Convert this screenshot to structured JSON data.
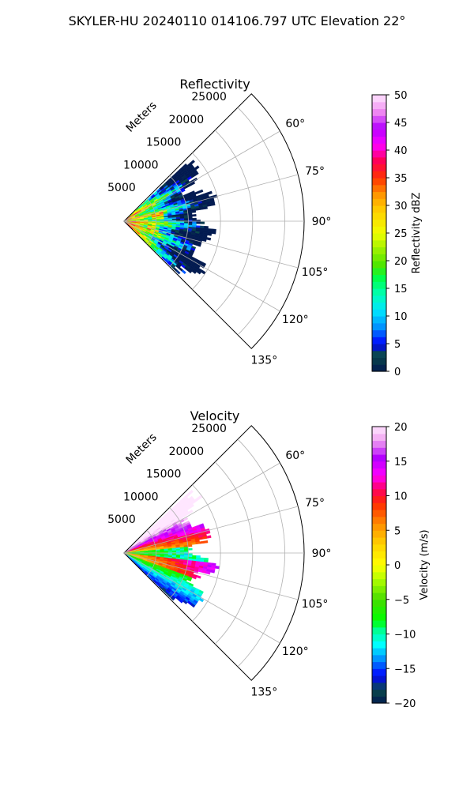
{
  "figure": {
    "title": "SKYLER-HU  20240110  014106.797 UTC Elevation 22°"
  },
  "chart_data": [
    {
      "type": "heatmap",
      "subtype": "polar-sector",
      "title": "Reflectivity",
      "radial_axis_label": "Meters",
      "theta_range_deg": [
        45,
        135
      ],
      "r_range": [
        0,
        28000
      ],
      "r_ticks": [
        5000,
        10000,
        15000,
        20000,
        25000
      ],
      "r_tick_labels": [
        "5000",
        "10000",
        "15000",
        "20000",
        "25000"
      ],
      "theta_ticks_deg": [
        60,
        75,
        90,
        105,
        120,
        135
      ],
      "theta_tick_labels": [
        "60°",
        "75°",
        "90°",
        "105°",
        "120°",
        "135°"
      ],
      "grid": true,
      "data_extent_m": 15000,
      "colorbar": {
        "label": "Reflectivity dBZ",
        "range": [
          0,
          50
        ],
        "ticks": [
          0,
          5,
          10,
          15,
          20,
          25,
          30,
          35,
          40,
          45,
          50
        ],
        "tick_labels": [
          "0",
          "5",
          "10",
          "15",
          "20",
          "25",
          "30",
          "35",
          "40",
          "45",
          "50"
        ],
        "stops": [
          {
            "v": 0,
            "c": "#021a50"
          },
          {
            "v": 3,
            "c": "#0a4a4a"
          },
          {
            "v": 5,
            "c": "#0000ff"
          },
          {
            "v": 8,
            "c": "#0090ff"
          },
          {
            "v": 11,
            "c": "#00e6ff"
          },
          {
            "v": 14,
            "c": "#00ffb4"
          },
          {
            "v": 17,
            "c": "#00ff46"
          },
          {
            "v": 19,
            "c": "#46e600"
          },
          {
            "v": 22,
            "c": "#9bf000"
          },
          {
            "v": 25,
            "c": "#f0ff00"
          },
          {
            "v": 29,
            "c": "#ffd000"
          },
          {
            "v": 32,
            "c": "#ff9600"
          },
          {
            "v": 35,
            "c": "#ff3200"
          },
          {
            "v": 38,
            "c": "#ff0050"
          },
          {
            "v": 41,
            "c": "#ff00ff"
          },
          {
            "v": 44,
            "c": "#b400ff"
          },
          {
            "v": 47,
            "c": "#f08cf0"
          },
          {
            "v": 50,
            "c": "#ffe6ff"
          }
        ]
      }
    },
    {
      "type": "heatmap",
      "subtype": "polar-sector",
      "title": "Velocity",
      "radial_axis_label": "Meters",
      "theta_range_deg": [
        45,
        135
      ],
      "r_range": [
        0,
        28000
      ],
      "r_ticks": [
        5000,
        10000,
        15000,
        20000,
        25000
      ],
      "r_tick_labels": [
        "5000",
        "10000",
        "15000",
        "20000",
        "25000"
      ],
      "theta_ticks_deg": [
        60,
        75,
        90,
        105,
        120,
        135
      ],
      "theta_tick_labels": [
        "60°",
        "75°",
        "90°",
        "105°",
        "120°",
        "135°"
      ],
      "grid": true,
      "data_extent_m": 15000,
      "colorbar": {
        "label": "Velocity (m/s)",
        "range": [
          -20,
          20
        ],
        "ticks": [
          -20,
          -15,
          -10,
          -5,
          0,
          5,
          10,
          15,
          20
        ],
        "tick_labels": [
          "−20",
          "−15",
          "−10",
          "−5",
          "0",
          "5",
          "10",
          "15",
          "20"
        ],
        "stops": [
          {
            "v": -20,
            "c": "#021a50"
          },
          {
            "v": -18,
            "c": "#0a4a4a"
          },
          {
            "v": -16,
            "c": "#0000ff"
          },
          {
            "v": -13.5,
            "c": "#0096ff"
          },
          {
            "v": -11.5,
            "c": "#00ffff"
          },
          {
            "v": -9.5,
            "c": "#00ff96"
          },
          {
            "v": -8,
            "c": "#00ff00"
          },
          {
            "v": -5,
            "c": "#46dc00"
          },
          {
            "v": -2,
            "c": "#b4ff00"
          },
          {
            "v": 0,
            "c": "#ffff00"
          },
          {
            "v": 3,
            "c": "#ffd200"
          },
          {
            "v": 6,
            "c": "#ff8c00"
          },
          {
            "v": 9,
            "c": "#ff2800"
          },
          {
            "v": 11,
            "c": "#ff0064"
          },
          {
            "v": 13,
            "c": "#ff00ff"
          },
          {
            "v": 15.5,
            "c": "#b400ff"
          },
          {
            "v": 18,
            "c": "#f0a0f0"
          },
          {
            "v": 20,
            "c": "#ffe6ff"
          }
        ]
      }
    }
  ]
}
